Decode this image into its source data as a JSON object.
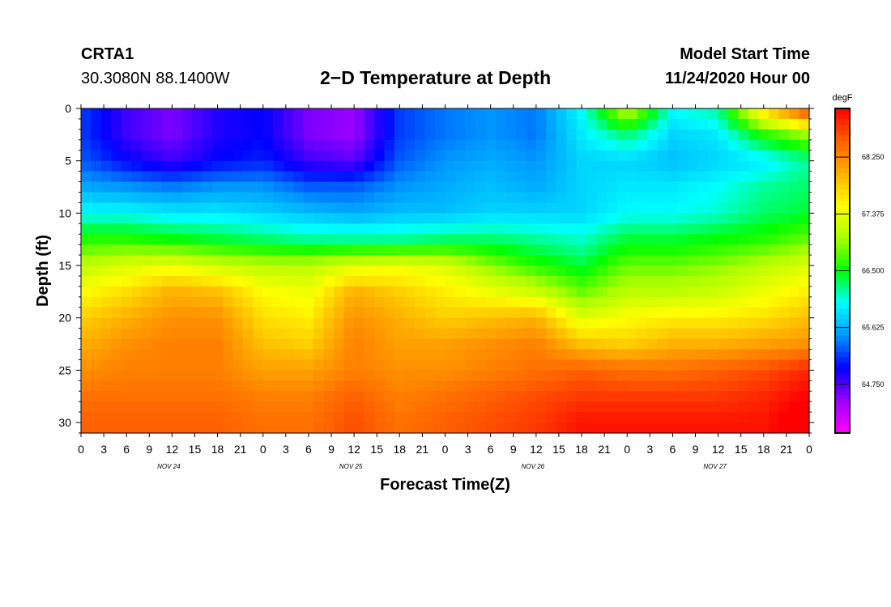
{
  "header": {
    "station": "CRTA1",
    "coordinates": "30.3080N 88.1400W",
    "title": "2−D Temperature at Depth",
    "model_start_label": "Model Start Time",
    "model_start_value": "11/24/2020 Hour 00"
  },
  "chart_data": {
    "type": "heatmap",
    "title": "2−D Temperature at Depth",
    "xlabel": "Forecast Time(Z)",
    "ylabel": "Depth (ft)",
    "x_tick_labels": [
      "0",
      "3",
      "6",
      "9",
      "12",
      "15",
      "18",
      "21",
      "0",
      "3",
      "6",
      "9",
      "12",
      "15",
      "18",
      "21",
      "0",
      "3",
      "6",
      "9",
      "12",
      "15",
      "18",
      "21",
      "0",
      "3",
      "6",
      "9",
      "12",
      "15",
      "18",
      "21",
      "0"
    ],
    "date_labels": [
      "NOV 24",
      "NOV 25",
      "NOV 26",
      "NOV 27"
    ],
    "xlim_hours": [
      0,
      96
    ],
    "ylim_ft": [
      31,
      0
    ],
    "y_ticks": [
      0,
      5,
      10,
      15,
      20,
      25,
      30
    ],
    "y_reversed": true,
    "colorbar": {
      "unit": "degF",
      "range": [
        64.0,
        69.0
      ],
      "tick_values": [
        64.75,
        65.625,
        66.5,
        67.375,
        68.25
      ],
      "tick_labels": [
        "64.750",
        "65.625",
        "66.500",
        "67.375",
        "68.250"
      ],
      "colors": [
        "#ff00ff",
        "#9b00ff",
        "#0000ff",
        "#0096ff",
        "#00ffff",
        "#00ff00",
        "#aaff00",
        "#ffff00",
        "#ffb000",
        "#ff6000",
        "#ff0000"
      ]
    },
    "grid": false,
    "time_hours": [
      0,
      6,
      12,
      18,
      24,
      30,
      36,
      42,
      48,
      54,
      60,
      66,
      72,
      78,
      84,
      90,
      96
    ],
    "depths_ft": [
      0,
      2.5,
      5,
      7.5,
      10,
      12.5,
      15,
      17.5,
      20,
      22.5,
      25,
      27.5,
      30,
      31
    ],
    "temperature_degF": [
      [
        65.2,
        64.8,
        64.6,
        64.9,
        65.0,
        64.6,
        64.5,
        65.2,
        65.4,
        65.5,
        65.4,
        66.0,
        67.2,
        66.0,
        66.2,
        67.8,
        68.8
      ],
      [
        65.2,
        64.8,
        64.6,
        64.9,
        65.0,
        64.6,
        64.5,
        65.2,
        65.4,
        65.5,
        65.4,
        65.9,
        66.3,
        65.8,
        65.9,
        66.6,
        67.0
      ],
      [
        65.3,
        65.0,
        64.8,
        65.0,
        65.1,
        64.8,
        64.7,
        65.3,
        65.5,
        65.6,
        65.5,
        65.8,
        65.8,
        65.7,
        65.8,
        65.9,
        66.2
      ],
      [
        65.6,
        65.5,
        65.4,
        65.5,
        65.5,
        65.3,
        65.3,
        65.5,
        65.6,
        65.7,
        65.6,
        65.8,
        65.9,
        65.9,
        66.0,
        66.2,
        66.3
      ],
      [
        66.0,
        66.0,
        65.9,
        65.9,
        65.8,
        65.7,
        65.6,
        65.7,
        65.7,
        65.8,
        65.8,
        65.8,
        66.0,
        66.0,
        66.1,
        66.3,
        66.4
      ],
      [
        66.6,
        66.6,
        66.5,
        66.4,
        66.3,
        66.2,
        66.2,
        66.2,
        66.3,
        66.3,
        66.2,
        66.1,
        66.4,
        66.4,
        66.5,
        66.6,
        66.8
      ],
      [
        67.1,
        67.3,
        67.4,
        67.2,
        67.1,
        67.1,
        67.3,
        67.4,
        67.3,
        66.9,
        66.6,
        66.4,
        66.8,
        66.8,
        66.9,
        67.1,
        67.3
      ],
      [
        67.5,
        67.7,
        68.0,
        67.9,
        67.5,
        67.4,
        68.0,
        67.8,
        67.6,
        67.4,
        67.2,
        66.8,
        67.1,
        67.1,
        67.2,
        67.4,
        67.6
      ],
      [
        67.8,
        68.0,
        68.2,
        68.2,
        67.7,
        67.6,
        68.2,
        68.0,
        67.8,
        67.9,
        68.0,
        67.3,
        67.5,
        67.6,
        67.6,
        67.7,
        67.9
      ],
      [
        68.0,
        68.2,
        68.3,
        68.3,
        67.9,
        67.8,
        68.3,
        68.1,
        68.1,
        68.2,
        68.3,
        67.9,
        67.8,
        68.0,
        68.0,
        68.1,
        68.2
      ],
      [
        68.2,
        68.3,
        68.3,
        68.3,
        68.1,
        68.1,
        68.3,
        68.2,
        68.2,
        68.3,
        68.4,
        68.5,
        68.4,
        68.4,
        68.5,
        68.6,
        68.8
      ],
      [
        68.4,
        68.4,
        68.4,
        68.4,
        68.3,
        68.3,
        68.5,
        68.3,
        68.4,
        68.5,
        68.6,
        68.7,
        68.7,
        68.7,
        68.7,
        68.8,
        69.0
      ],
      [
        68.5,
        68.5,
        68.5,
        68.5,
        68.4,
        68.4,
        68.6,
        68.4,
        68.5,
        68.6,
        68.7,
        68.9,
        68.9,
        68.9,
        68.9,
        68.9,
        69.2
      ],
      [
        68.5,
        68.5,
        68.5,
        68.5,
        68.4,
        68.4,
        68.6,
        68.4,
        68.5,
        68.6,
        68.7,
        68.9,
        68.9,
        68.9,
        68.9,
        68.9,
        69.2
      ]
    ]
  }
}
